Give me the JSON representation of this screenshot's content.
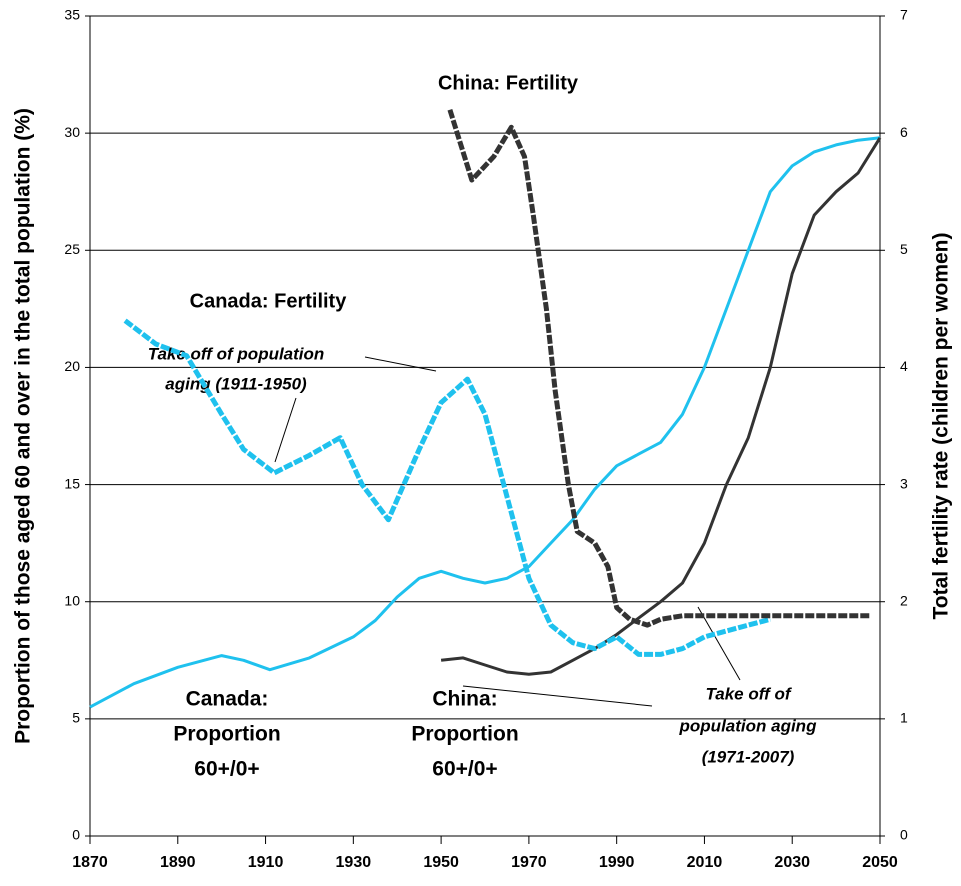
{
  "chart_data": {
    "type": "line",
    "ylabel": "Proportion of those aged 60 and over in the total population (%)",
    "y2label": "Total fertility rate (children per women)",
    "xlim": [
      1870,
      2050
    ],
    "xticks": [
      1870,
      1890,
      1910,
      1930,
      1950,
      1970,
      1990,
      2010,
      2030,
      2050
    ],
    "ylim": [
      0,
      35
    ],
    "yticks": [
      0,
      5,
      10,
      15,
      20,
      25,
      30,
      35
    ],
    "y2lim": [
      0,
      7
    ],
    "y2ticks": [
      0,
      1,
      2,
      3,
      4,
      5,
      6,
      7
    ],
    "grid": true,
    "series": [
      {
        "name": "Canada: Proportion 60+/0+",
        "color": "#1fc1ee",
        "dashed": false,
        "x": [
          1870,
          1880,
          1890,
          1900,
          1905,
          1911,
          1920,
          1930,
          1935,
          1940,
          1945,
          1950,
          1955,
          1960,
          1965,
          1970,
          1975,
          1980,
          1985,
          1990,
          1995,
          2000,
          2005,
          2010,
          2015,
          2020,
          2025,
          2030,
          2035,
          2040,
          2045,
          2050
        ],
        "values": [
          5.5,
          6.5,
          7.2,
          7.7,
          7.5,
          7.1,
          7.6,
          8.5,
          9.2,
          10.2,
          11.0,
          11.3,
          11.0,
          10.8,
          11.0,
          11.5,
          12.5,
          13.5,
          14.8,
          15.8,
          16.3,
          16.8,
          18.0,
          20.0,
          22.5,
          25.0,
          27.5,
          28.6,
          29.2,
          29.5,
          29.7,
          29.8
        ]
      },
      {
        "name": "China: Proportion 60+/0+",
        "color": "#333333",
        "dashed": false,
        "x": [
          1950,
          1955,
          1960,
          1965,
          1970,
          1975,
          1980,
          1985,
          1990,
          1995,
          2000,
          2005,
          2010,
          2015,
          2020,
          2025,
          2030,
          2035,
          2040,
          2045,
          2050
        ],
        "values": [
          7.5,
          7.6,
          7.3,
          7.0,
          6.9,
          7.0,
          7.5,
          8.0,
          8.6,
          9.3,
          10.0,
          10.8,
          12.5,
          15.0,
          17.0,
          20.0,
          24.0,
          26.5,
          27.5,
          28.3,
          29.8
        ]
      },
      {
        "name": "Canada: Fertility",
        "color": "#1fc1ee",
        "dashed": true,
        "axis": "y2",
        "x": [
          1878,
          1885,
          1892,
          1900,
          1905,
          1912,
          1920,
          1927,
          1932,
          1938,
          1945,
          1950,
          1956,
          1960,
          1965,
          1970,
          1975,
          1980,
          1985,
          1990,
          1995,
          2000,
          2005,
          2010,
          2020,
          2025
        ],
        "values": [
          4.4,
          4.2,
          4.1,
          3.6,
          3.3,
          3.1,
          3.25,
          3.4,
          3.0,
          2.7,
          3.3,
          3.7,
          3.9,
          3.6,
          2.9,
          2.2,
          1.8,
          1.65,
          1.6,
          1.7,
          1.55,
          1.55,
          1.6,
          1.7,
          1.8,
          1.85
        ]
      },
      {
        "name": "China: Fertility",
        "color": "#333333",
        "dashed": true,
        "axis": "y2",
        "x": [
          1952,
          1957,
          1962,
          1966,
          1969,
          1971,
          1974,
          1976,
          1979,
          1981,
          1985,
          1988,
          1990,
          1993,
          1997,
          2000,
          2005,
          2048
        ],
        "values": [
          6.2,
          5.6,
          5.8,
          6.05,
          5.8,
          5.3,
          4.5,
          3.8,
          3.0,
          2.6,
          2.5,
          2.3,
          1.95,
          1.85,
          1.8,
          1.85,
          1.88,
          1.88
        ]
      }
    ],
    "annotations": [
      {
        "lines": [
          "China: Fertility"
        ]
      },
      {
        "lines": [
          "Canada: Fertility"
        ]
      },
      {
        "lines": [
          "Take off of population",
          "aging (1911-1950)"
        ]
      },
      {
        "lines": [
          "Canada:",
          "Proportion",
          "60+/0+"
        ]
      },
      {
        "lines": [
          "China:",
          "Proportion",
          "60+/0+"
        ]
      },
      {
        "lines": [
          "Take off of",
          "population aging",
          "(1971-2007)"
        ]
      }
    ]
  }
}
